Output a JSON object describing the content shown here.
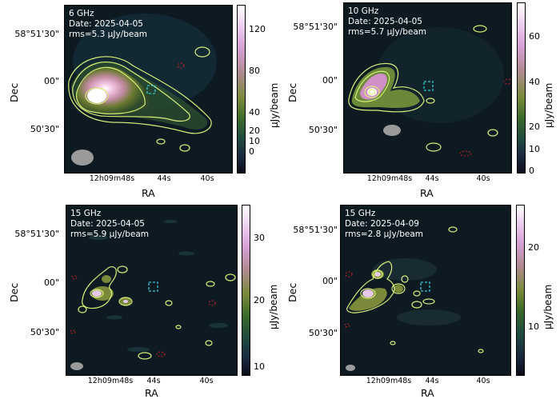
{
  "panels": [
    {
      "freq": "6 GHz",
      "date": "Date: 2025-04-05",
      "rms": "rms=5.3 μJy/beam",
      "cbar_ticks": [
        "120",
        "80",
        "40",
        "20",
        "10",
        "0"
      ],
      "cbar_label": "μJy/beam"
    },
    {
      "freq": "10 GHz",
      "date": "Date: 2025-04-05",
      "rms": "rms=5.7 μJy/beam",
      "cbar_ticks": [
        "60",
        "40",
        "20",
        "10",
        "0"
      ],
      "cbar_label": "μJy/beam"
    },
    {
      "freq": "15 GHz",
      "date": "Date: 2025-04-05",
      "rms": "rms=5.9 μJy/beam",
      "cbar_ticks": [
        "30",
        "20",
        "10"
      ],
      "cbar_label": "μJy/beam"
    },
    {
      "freq": "15 GHz",
      "date": "Date: 2025-04-09",
      "rms": "rms=2.8 μJy/beam",
      "cbar_ticks": [
        "20",
        "10"
      ],
      "cbar_label": "μJy/beam"
    }
  ],
  "axes": {
    "ylabel": "Dec",
    "xlabel": "RA",
    "yticks": [
      "58°51'30\"",
      "00\"",
      "50'30\""
    ],
    "xticks": [
      "12h09m48s",
      "44s",
      "40s"
    ]
  },
  "colors": {
    "background": "#0d1a22",
    "contour_positive": "#d8ee7a",
    "contour_negative": "#cc2222",
    "marker": "#35c7d8",
    "beam": "#9a9a9a"
  }
}
